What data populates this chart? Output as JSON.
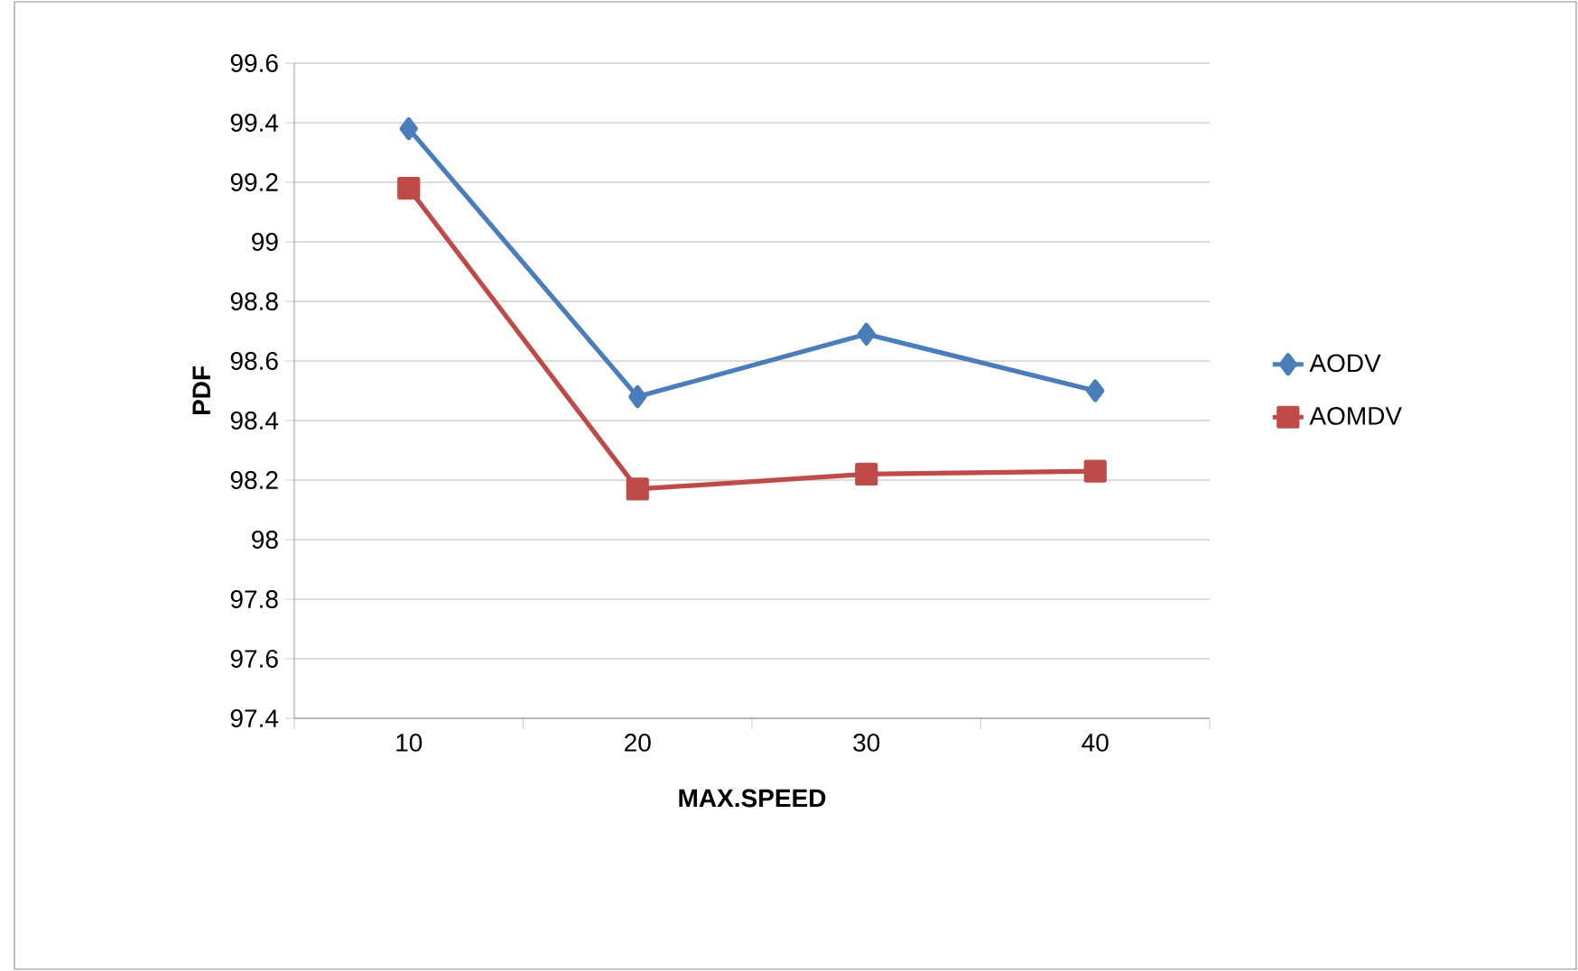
{
  "chart_data": {
    "type": "line",
    "xlabel": "MAX.SPEED",
    "ylabel": "PDF",
    "categories": [
      "10",
      "20",
      "30",
      "40"
    ],
    "series": [
      {
        "name": "AODV",
        "color": "#4a7ebb",
        "marker": "diamond",
        "values": [
          99.38,
          98.48,
          98.69,
          98.5
        ]
      },
      {
        "name": "AOMDV",
        "color": "#be4b48",
        "marker": "square",
        "values": [
          99.18,
          98.17,
          98.22,
          98.23
        ]
      }
    ],
    "ylim": [
      97.4,
      99.6
    ],
    "yticks": [
      97.4,
      97.6,
      97.8,
      98,
      98.2,
      98.4,
      98.6,
      98.8,
      99,
      99.2,
      99.4,
      99.6
    ],
    "grid": "y",
    "legend": "right"
  }
}
